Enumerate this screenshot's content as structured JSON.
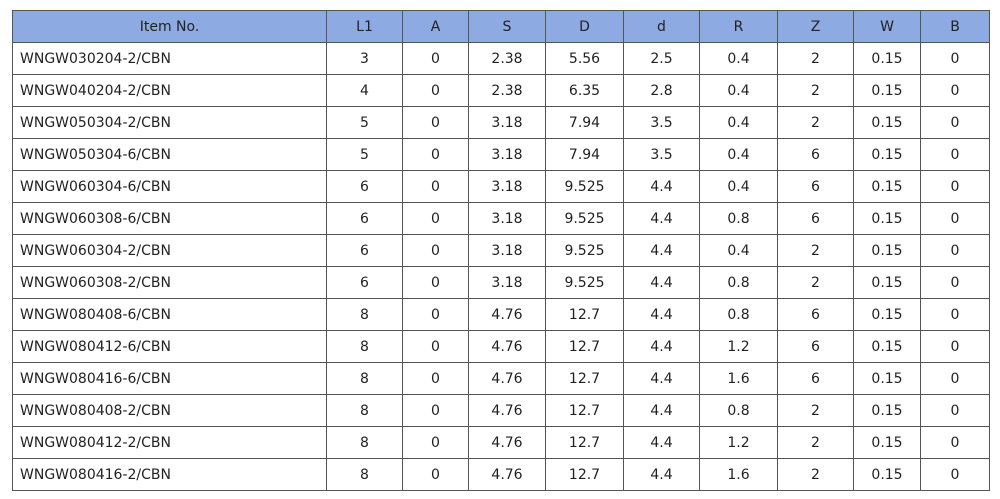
{
  "table": {
    "header": [
      "Item No.",
      "L1",
      "A",
      "S",
      "D",
      "d",
      "R",
      "Z",
      "W",
      "B"
    ],
    "rows": [
      [
        "WNGW030204-2/CBN",
        "3",
        "0",
        "2.38",
        "5.56",
        "2.5",
        "0.4",
        "2",
        "0.15",
        "0"
      ],
      [
        "WNGW040204-2/CBN",
        "4",
        "0",
        "2.38",
        "6.35",
        "2.8",
        "0.4",
        "2",
        "0.15",
        "0"
      ],
      [
        "WNGW050304-2/CBN",
        "5",
        "0",
        "3.18",
        "7.94",
        "3.5",
        "0.4",
        "2",
        "0.15",
        "0"
      ],
      [
        "WNGW050304-6/CBN",
        "5",
        "0",
        "3.18",
        "7.94",
        "3.5",
        "0.4",
        "6",
        "0.15",
        "0"
      ],
      [
        "WNGW060304-6/CBN",
        "6",
        "0",
        "3.18",
        "9.525",
        "4.4",
        "0.4",
        "6",
        "0.15",
        "0"
      ],
      [
        "WNGW060308-6/CBN",
        "6",
        "0",
        "3.18",
        "9.525",
        "4.4",
        "0.8",
        "6",
        "0.15",
        "0"
      ],
      [
        "WNGW060304-2/CBN",
        "6",
        "0",
        "3.18",
        "9.525",
        "4.4",
        "0.4",
        "2",
        "0.15",
        "0"
      ],
      [
        "WNGW060308-2/CBN",
        "6",
        "0",
        "3.18",
        "9.525",
        "4.4",
        "0.8",
        "2",
        "0.15",
        "0"
      ],
      [
        "WNGW080408-6/CBN",
        "8",
        "0",
        "4.76",
        "12.7",
        "4.4",
        "0.8",
        "6",
        "0.15",
        "0"
      ],
      [
        "WNGW080412-6/CBN",
        "8",
        "0",
        "4.76",
        "12.7",
        "4.4",
        "1.2",
        "6",
        "0.15",
        "0"
      ],
      [
        "WNGW080416-6/CBN",
        "8",
        "0",
        "4.76",
        "12.7",
        "4.4",
        "1.6",
        "6",
        "0.15",
        "0"
      ],
      [
        "WNGW080408-2/CBN",
        "8",
        "0",
        "4.76",
        "12.7",
        "4.4",
        "0.8",
        "2",
        "0.15",
        "0"
      ],
      [
        "WNGW080412-2/CBN",
        "8",
        "0",
        "4.76",
        "12.7",
        "4.4",
        "1.2",
        "2",
        "0.15",
        "0"
      ],
      [
        "WNGW080416-2/CBN",
        "8",
        "0",
        "4.76",
        "12.7",
        "4.4",
        "1.6",
        "2",
        "0.15",
        "0"
      ]
    ]
  }
}
